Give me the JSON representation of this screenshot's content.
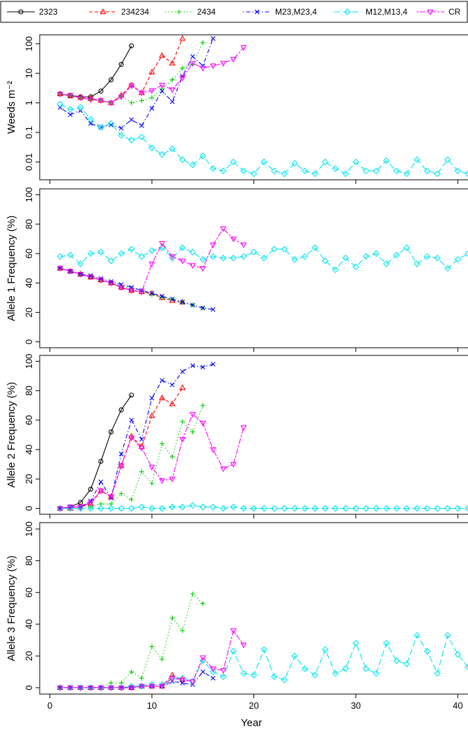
{
  "colors": {
    "s2323": "#000000",
    "s234234": "#ff0000",
    "s2434": "#00cc00",
    "sM23": "#0000ff",
    "sM12": "#00e5ee",
    "sCR": "#ff00ff"
  },
  "legend": [
    {
      "name": "2323",
      "color": "#000000",
      "marker": "circle",
      "dash": "solid"
    },
    {
      "name": "234234",
      "color": "#ff0000",
      "marker": "triangle",
      "dash": "dashed"
    },
    {
      "name": "2434",
      "color": "#00cc00",
      "marker": "plus",
      "dash": "dotted"
    },
    {
      "name": "M23,M23,4",
      "color": "#0000ff",
      "marker": "x",
      "dash": "dotdash"
    },
    {
      "name": "M12,M13,4",
      "color": "#00e5ee",
      "marker": "diamond",
      "dash": "longdash"
    },
    {
      "name": "CR",
      "color": "#ff00ff",
      "marker": "triangle-down",
      "dash": "twodash"
    }
  ],
  "chart_data": [
    {
      "type": "line",
      "ylabel": "Weeds m⁻²",
      "yscale": "log",
      "ylim": [
        0.0025,
        200
      ],
      "xlim": [
        -1,
        41
      ],
      "yticks": [
        0.01,
        0.1,
        1,
        10,
        100
      ],
      "yticklabels": [
        "0.01",
        "0.1",
        "1",
        "10",
        "100"
      ],
      "xticks": [
        0,
        10,
        20,
        30,
        40
      ],
      "xticklabels": [],
      "series": [
        {
          "name": "2323",
          "x": [
            1,
            2,
            3,
            4,
            5,
            6,
            7,
            8
          ],
          "values": [
            2.0,
            1.8,
            1.6,
            1.6,
            2.5,
            6,
            20,
            85
          ]
        },
        {
          "name": "234234",
          "x": [
            1,
            2,
            3,
            4,
            5,
            6,
            7,
            8,
            9,
            10,
            11,
            12,
            13
          ],
          "values": [
            2.0,
            1.7,
            1.5,
            1.4,
            1.2,
            1.0,
            1.8,
            4.0,
            2.2,
            11,
            40,
            22,
            150
          ]
        },
        {
          "name": "2434",
          "x": [
            1,
            2,
            3,
            4,
            5,
            6,
            7,
            8,
            9,
            10,
            11,
            12,
            13,
            14,
            15
          ],
          "values": [
            2.0,
            1.7,
            1.5,
            1.3,
            1.2,
            1.0,
            1.7,
            1.0,
            1.2,
            1.5,
            3,
            6,
            15,
            20,
            110
          ]
        },
        {
          "name": "M23,M23,4",
          "x": [
            1,
            2,
            3,
            4,
            5,
            6,
            7,
            8,
            9,
            10,
            11,
            12,
            13,
            14,
            15,
            16
          ],
          "values": [
            0.7,
            0.4,
            0.55,
            0.2,
            0.15,
            0.18,
            0.14,
            0.27,
            0.17,
            0.65,
            2.5,
            1.1,
            8,
            37,
            18,
            150
          ]
        },
        {
          "name": "M12,M13,4",
          "x": [
            1,
            2,
            3,
            4,
            5,
            6,
            7,
            8,
            9,
            10,
            11,
            12,
            13,
            14,
            15,
            16,
            17,
            18,
            19,
            20,
            21,
            22,
            23,
            24,
            25,
            26,
            27,
            28,
            29,
            30,
            31,
            32,
            33,
            34,
            35,
            36,
            37,
            38,
            39,
            40,
            41,
            42
          ],
          "values": [
            0.9,
            0.6,
            0.7,
            0.28,
            0.15,
            0.2,
            0.08,
            0.055,
            0.07,
            0.03,
            0.018,
            0.028,
            0.012,
            0.008,
            0.016,
            0.006,
            0.005,
            0.01,
            0.005,
            0.004,
            0.01,
            0.005,
            0.004,
            0.009,
            0.005,
            0.004,
            0.01,
            0.006,
            0.004,
            0.01,
            0.005,
            0.005,
            0.011,
            0.005,
            0.004,
            0.012,
            0.005,
            0.004,
            0.012,
            0.005,
            0.004,
            0.007
          ]
        },
        {
          "name": "CR",
          "x": [
            1,
            2,
            3,
            4,
            5,
            6,
            7,
            8,
            9,
            10,
            11,
            12,
            13,
            14,
            15,
            16,
            17,
            18,
            19
          ],
          "values": [
            2.0,
            1.8,
            1.5,
            1.3,
            1.2,
            1.0,
            1.6,
            3.8,
            2.2,
            2.6,
            4,
            2.8,
            7,
            22,
            15,
            18,
            22,
            30,
            75
          ]
        }
      ]
    },
    {
      "type": "line",
      "ylabel": "Allele 1 Frequency (%)",
      "ylim": [
        -4,
        104
      ],
      "xlim": [
        -1,
        41
      ],
      "yticks": [
        0,
        20,
        40,
        60,
        80,
        100
      ],
      "xticks": [
        0,
        10,
        20,
        30,
        40
      ],
      "xticklabels": [],
      "series": [
        {
          "name": "2323",
          "x": [
            1,
            2,
            3,
            4,
            5,
            6,
            7,
            8
          ],
          "values": [
            50,
            48,
            46,
            44,
            42,
            40,
            37,
            35
          ]
        },
        {
          "name": "234234",
          "x": [
            1,
            2,
            3,
            4,
            5,
            6,
            7,
            8,
            9,
            10,
            11,
            12,
            13
          ],
          "values": [
            50,
            48,
            46,
            44,
            42,
            40,
            37,
            35,
            34,
            33,
            30,
            28,
            27
          ]
        },
        {
          "name": "2434",
          "x": [
            1,
            2,
            3,
            4,
            5,
            6,
            7,
            8,
            9,
            10,
            11,
            12,
            13,
            14,
            15
          ],
          "values": [
            50,
            48,
            46,
            44,
            42,
            40,
            38,
            36,
            34,
            32,
            30,
            29,
            27,
            25,
            23
          ]
        },
        {
          "name": "M23,M23,4",
          "x": [
            1,
            2,
            3,
            4,
            5,
            6,
            7,
            8,
            9,
            10,
            11,
            12,
            13,
            14,
            15,
            16
          ],
          "values": [
            50,
            48,
            46,
            45,
            43,
            41,
            39,
            37,
            35,
            33,
            31,
            29,
            27,
            25,
            23,
            22
          ]
        },
        {
          "name": "M12,M13,4",
          "x": [
            1,
            2,
            3,
            4,
            5,
            6,
            7,
            8,
            9,
            10,
            11,
            12,
            13,
            14,
            15,
            16,
            17,
            18,
            19,
            20,
            21,
            22,
            23,
            24,
            25,
            26,
            27,
            28,
            29,
            30,
            31,
            32,
            33,
            34,
            35,
            36,
            37,
            38,
            39,
            40,
            41,
            42
          ],
          "values": [
            58,
            59,
            53,
            60,
            61,
            55,
            60,
            63,
            58,
            62,
            64,
            57,
            64,
            61,
            56,
            58,
            57,
            57,
            58,
            61,
            57,
            63,
            63,
            56,
            58,
            64,
            55,
            49,
            57,
            51,
            58,
            60,
            53,
            59,
            64,
            53,
            58,
            57,
            50,
            56,
            60,
            56
          ]
        },
        {
          "name": "CR",
          "x": [
            1,
            2,
            3,
            4,
            5,
            6,
            7,
            8,
            9,
            10,
            11,
            12,
            13,
            14,
            15,
            16,
            17,
            18,
            19
          ],
          "values": [
            50,
            48,
            46,
            44,
            42,
            40,
            37,
            35,
            34,
            53,
            67,
            58,
            55,
            52,
            50,
            66,
            77,
            70,
            66
          ]
        }
      ]
    },
    {
      "type": "line",
      "ylabel": "Allele 2 Frequency (%)",
      "ylim": [
        -4,
        104
      ],
      "xlim": [
        -1,
        41
      ],
      "yticks": [
        0,
        20,
        40,
        60,
        80,
        100
      ],
      "xticks": [
        0,
        10,
        20,
        30,
        40
      ],
      "xticklabels": [],
      "series": [
        {
          "name": "2323",
          "x": [
            1,
            2,
            3,
            4,
            5,
            6,
            7,
            8
          ],
          "values": [
            0,
            1,
            4,
            13,
            32,
            52,
            67,
            77
          ]
        },
        {
          "name": "234234",
          "x": [
            1,
            2,
            3,
            4,
            5,
            6,
            7,
            8,
            9,
            10,
            11,
            12,
            13
          ],
          "values": [
            0,
            0,
            1,
            3,
            12,
            8,
            29,
            49,
            42,
            63,
            75,
            71,
            82
          ]
        },
        {
          "name": "2434",
          "x": [
            1,
            2,
            3,
            4,
            5,
            6,
            7,
            8,
            9,
            10,
            11,
            12,
            13,
            14,
            15
          ],
          "values": [
            0,
            0,
            0,
            1,
            3,
            3,
            10,
            6,
            25,
            17,
            44,
            35,
            59,
            52,
            70
          ]
        },
        {
          "name": "M23,M23,4",
          "x": [
            1,
            2,
            3,
            4,
            5,
            6,
            7,
            8,
            9,
            10,
            11,
            12,
            13,
            14,
            15,
            16
          ],
          "values": [
            0,
            1,
            1,
            5,
            18,
            7,
            37,
            60,
            47,
            75,
            87,
            84,
            93,
            97,
            96,
            98
          ]
        },
        {
          "name": "M12,M13,4",
          "x": [
            1,
            2,
            3,
            4,
            5,
            6,
            7,
            8,
            9,
            10,
            11,
            12,
            13,
            14,
            15,
            16,
            17,
            18,
            19,
            20,
            21,
            22,
            23,
            24,
            25,
            26,
            27,
            28,
            29,
            30,
            31,
            32,
            33,
            34,
            35,
            36,
            37,
            38,
            39,
            40,
            41,
            42
          ],
          "values": [
            0,
            0,
            0,
            0,
            0,
            0,
            0,
            0,
            1,
            0,
            0,
            1,
            1,
            2,
            1,
            1,
            0,
            1,
            0,
            0,
            0,
            0,
            0,
            0,
            0,
            0,
            0,
            0,
            0,
            0,
            0,
            0,
            0,
            0,
            0,
            0,
            0,
            0,
            0,
            0,
            0,
            0
          ]
        },
        {
          "name": "CR",
          "x": [
            1,
            2,
            3,
            4,
            5,
            6,
            7,
            8,
            9,
            10,
            11,
            12,
            13,
            14,
            15,
            16,
            17,
            18,
            19
          ],
          "values": [
            0,
            1,
            1,
            4,
            12,
            8,
            29,
            48,
            41,
            28,
            19,
            20,
            47,
            64,
            58,
            40,
            27,
            30,
            55
          ]
        }
      ]
    },
    {
      "type": "line",
      "ylabel": "Allele 3 Frequency (%)",
      "xlabel": "Year",
      "ylim": [
        -4,
        104
      ],
      "xlim": [
        -1,
        41
      ],
      "yticks": [
        0,
        20,
        40,
        60,
        80,
        100
      ],
      "xticks": [
        0,
        10,
        20,
        30,
        40
      ],
      "xticklabels": [
        "0",
        "10",
        "20",
        "30",
        "40"
      ],
      "series": [
        {
          "name": "2323",
          "x": [
            1,
            2,
            3,
            4,
            5,
            6,
            7,
            8
          ],
          "values": [
            0,
            0,
            0,
            0,
            0,
            0,
            0,
            0
          ]
        },
        {
          "name": "234234",
          "x": [
            1,
            2,
            3,
            4,
            5,
            6,
            7,
            8,
            9,
            10,
            11,
            12,
            13
          ],
          "values": [
            0,
            0,
            0,
            0,
            0,
            0,
            0,
            0,
            1,
            1,
            1,
            8,
            5
          ]
        },
        {
          "name": "2434",
          "x": [
            1,
            2,
            3,
            4,
            5,
            6,
            7,
            8,
            9,
            10,
            11,
            12,
            13,
            14,
            15
          ],
          "values": [
            0,
            0,
            0,
            0,
            0,
            3,
            3,
            10,
            6,
            26,
            18,
            44,
            36,
            59,
            53
          ]
        },
        {
          "name": "M23,M23,4",
          "x": [
            1,
            2,
            3,
            4,
            5,
            6,
            7,
            8,
            9,
            10,
            11,
            12,
            13,
            14,
            15,
            16
          ],
          "values": [
            0,
            0,
            0,
            0,
            0,
            0,
            0,
            0,
            1,
            1,
            1,
            4,
            3,
            2,
            10,
            6
          ]
        },
        {
          "name": "M12,M13,4",
          "x": [
            1,
            2,
            3,
            4,
            5,
            6,
            7,
            8,
            9,
            10,
            11,
            12,
            13,
            14,
            15,
            16,
            17,
            18,
            19,
            20,
            21,
            22,
            23,
            24,
            25,
            26,
            27,
            28,
            29,
            30,
            31,
            32,
            33,
            34,
            35,
            36,
            37,
            38,
            39,
            40,
            41,
            42
          ],
          "values": [
            0,
            0,
            0,
            0,
            0,
            0,
            0,
            1,
            1,
            2,
            2,
            6,
            6,
            4,
            17,
            10,
            7,
            23,
            9,
            8,
            24,
            7,
            5,
            20,
            12,
            8,
            24,
            9,
            12,
            28,
            12,
            9,
            28,
            17,
            15,
            33,
            23,
            9,
            33,
            21,
            13,
            25
          ]
        },
        {
          "name": "CR",
          "x": [
            1,
            2,
            3,
            4,
            5,
            6,
            7,
            8,
            9,
            10,
            11,
            12,
            13,
            14,
            15,
            16,
            17,
            18,
            19
          ],
          "values": [
            0,
            0,
            0,
            0,
            0,
            0,
            0,
            0,
            1,
            1,
            1,
            6,
            5,
            4,
            19,
            12,
            11,
            36,
            27
          ]
        }
      ]
    }
  ]
}
